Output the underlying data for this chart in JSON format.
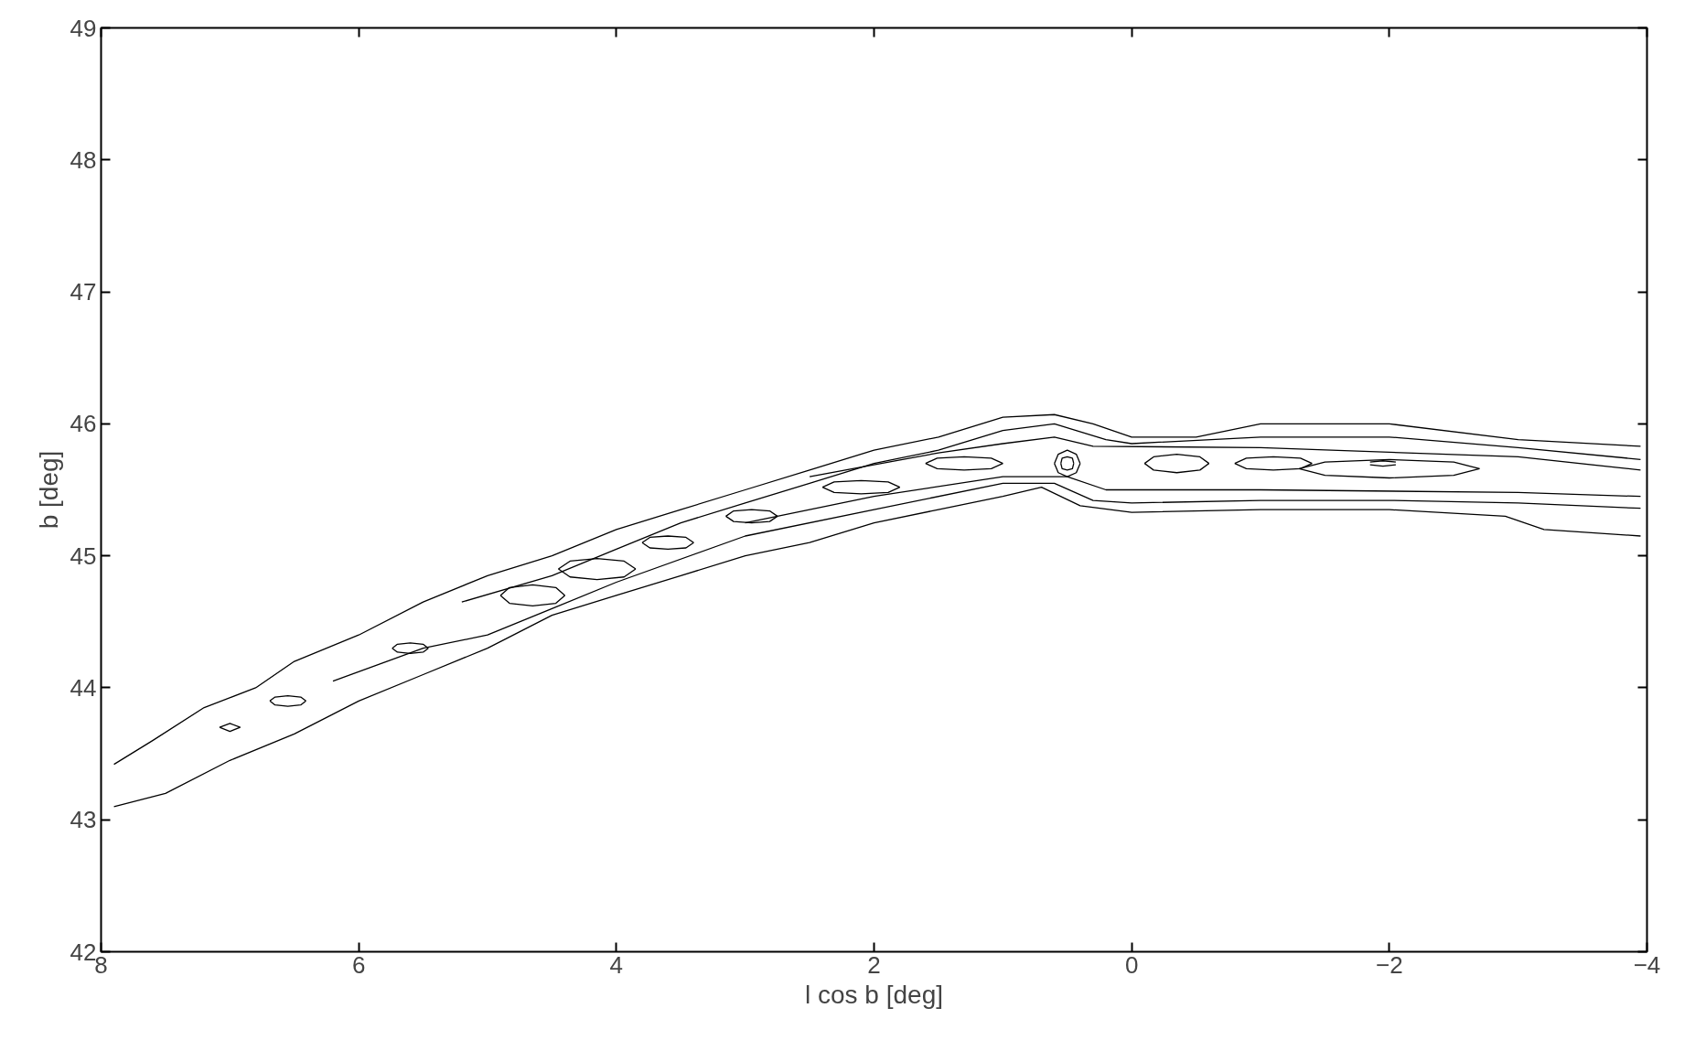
{
  "chart_data": {
    "type": "line",
    "xlabel": "l cos b [deg]",
    "ylabel": "b [deg]",
    "xlim": [
      8,
      -4
    ],
    "ylim": [
      42,
      49
    ],
    "xticks": [
      8,
      6,
      4,
      2,
      0,
      -2,
      -4
    ],
    "yticks": [
      42,
      43,
      44,
      45,
      46,
      47,
      48,
      49
    ],
    "grid": false,
    "series": [
      {
        "color": "#000000",
        "x": [
          7.9,
          7.6,
          7.2,
          6.8,
          6.5,
          6.0,
          5.5,
          5.0,
          4.5,
          4.0,
          3.5,
          3.0,
          2.5,
          2.0,
          1.5,
          1.0,
          0.6,
          0.3,
          0.0,
          -0.5,
          -1.0,
          -2.0,
          -3.0,
          -3.95
        ],
        "values": [
          43.42,
          43.6,
          43.85,
          44.0,
          44.2,
          44.4,
          44.65,
          44.85,
          45.0,
          45.2,
          45.35,
          45.5,
          45.65,
          45.8,
          45.9,
          46.05,
          46.07,
          46.0,
          45.9,
          45.9,
          46.0,
          46.0,
          45.88,
          45.83
        ]
      },
      {
        "color": "#000000",
        "x": [
          7.9,
          7.5,
          7.0,
          6.5,
          6.0,
          5.5,
          5.0,
          4.5,
          4.0,
          3.5,
          3.0,
          2.5,
          2.0,
          1.5,
          1.0,
          0.7,
          0.4,
          0.0,
          -1.0,
          -2.0,
          -2.9,
          -3.2,
          -3.95
        ],
        "values": [
          43.1,
          43.2,
          43.45,
          43.65,
          43.9,
          44.1,
          44.3,
          44.55,
          44.7,
          44.85,
          45.0,
          45.1,
          45.25,
          45.35,
          45.45,
          45.52,
          45.38,
          45.33,
          45.35,
          45.35,
          45.3,
          45.2,
          45.15
        ]
      },
      {
        "color": "#000000",
        "x": [
          5.2,
          4.5,
          4.0,
          3.5,
          3.0,
          2.5,
          2.0,
          1.5,
          1.0,
          0.6,
          0.2,
          0.0,
          -1.0,
          -2.0,
          -3.0,
          -3.95
        ],
        "values": [
          44.65,
          44.85,
          45.05,
          45.25,
          45.4,
          45.55,
          45.7,
          45.8,
          45.95,
          46.0,
          45.88,
          45.85,
          45.9,
          45.9,
          45.82,
          45.73
        ]
      },
      {
        "color": "#000000",
        "x": [
          6.2,
          5.5,
          5.0,
          4.5,
          4.0,
          3.0,
          2.0,
          1.0,
          0.6,
          0.3,
          0.0,
          -1.0,
          -2.0,
          -3.0,
          -3.95
        ],
        "values": [
          44.05,
          44.3,
          44.4,
          44.6,
          44.8,
          45.15,
          45.35,
          45.55,
          45.55,
          45.42,
          45.4,
          45.42,
          45.42,
          45.4,
          45.36
        ]
      },
      {
        "color": "#000000",
        "x": [
          2.5,
          1.5,
          1.0,
          0.6,
          0.3,
          -1.0,
          -3.0,
          -3.95
        ],
        "values": [
          45.6,
          45.78,
          45.85,
          45.9,
          45.83,
          45.82,
          45.75,
          45.65
        ]
      },
      {
        "color": "#000000",
        "x": [
          3.0,
          2.0,
          1.0,
          0.5,
          0.2,
          -1.0,
          -3.0,
          -3.95
        ],
        "values": [
          45.25,
          45.45,
          45.6,
          45.6,
          45.5,
          45.5,
          45.48,
          45.45
        ]
      },
      {
        "color": "#000000",
        "x": [
          7.08,
          7.0,
          6.92
        ],
        "values": [
          43.7,
          43.73,
          43.7
        ]
      },
      {
        "color": "#000000",
        "x": [
          7.08,
          7.0,
          6.92
        ],
        "values": [
          43.7,
          43.67,
          43.7
        ]
      },
      {
        "color": "#000000",
        "x": [
          6.69,
          6.65,
          6.55,
          6.45,
          6.41
        ],
        "values": [
          43.9,
          43.93,
          43.94,
          43.93,
          43.9
        ]
      },
      {
        "color": "#000000",
        "x": [
          6.41,
          6.45,
          6.55,
          6.65,
          6.69
        ],
        "values": [
          43.9,
          43.87,
          43.86,
          43.87,
          43.9
        ]
      },
      {
        "color": "#000000",
        "x": [
          5.74,
          5.7,
          5.6,
          5.5,
          5.46
        ],
        "values": [
          44.3,
          44.33,
          44.34,
          44.33,
          44.3
        ]
      },
      {
        "color": "#000000",
        "x": [
          5.46,
          5.5,
          5.6,
          5.7,
          5.74
        ],
        "values": [
          44.3,
          44.27,
          44.26,
          44.27,
          44.3
        ]
      },
      {
        "color": "#000000",
        "x": [
          4.9,
          4.83,
          4.65,
          4.47,
          4.4
        ],
        "values": [
          44.7,
          44.76,
          44.78,
          44.76,
          44.7
        ]
      },
      {
        "color": "#000000",
        "x": [
          4.4,
          4.47,
          4.65,
          4.83,
          4.9
        ],
        "values": [
          44.7,
          44.64,
          44.62,
          44.64,
          44.7
        ]
      },
      {
        "color": "#000000",
        "x": [
          4.45,
          4.36,
          4.15,
          3.94,
          3.85
        ],
        "values": [
          44.9,
          44.96,
          44.98,
          44.96,
          44.9
        ]
      },
      {
        "color": "#000000",
        "x": [
          3.85,
          3.94,
          4.15,
          4.36,
          4.45
        ],
        "values": [
          44.9,
          44.84,
          44.82,
          44.84,
          44.9
        ]
      },
      {
        "color": "#000000",
        "x": [
          3.8,
          3.74,
          3.6,
          3.46,
          3.4
        ],
        "values": [
          45.1,
          45.14,
          45.15,
          45.14,
          45.1
        ]
      },
      {
        "color": "#000000",
        "x": [
          3.4,
          3.46,
          3.6,
          3.74,
          3.8
        ],
        "values": [
          45.1,
          45.06,
          45.05,
          45.06,
          45.1
        ]
      },
      {
        "color": "#000000",
        "x": [
          3.15,
          3.09,
          2.95,
          2.81,
          2.75
        ],
        "values": [
          45.3,
          45.34,
          45.35,
          45.34,
          45.3
        ]
      },
      {
        "color": "#000000",
        "x": [
          2.75,
          2.81,
          2.95,
          3.09,
          3.15
        ],
        "values": [
          45.3,
          45.26,
          45.25,
          45.26,
          45.3
        ]
      },
      {
        "color": "#000000",
        "x": [
          2.4,
          2.31,
          2.1,
          1.89,
          1.8
        ],
        "values": [
          45.52,
          45.56,
          45.57,
          45.56,
          45.52
        ]
      },
      {
        "color": "#000000",
        "x": [
          1.8,
          1.89,
          2.1,
          2.31,
          2.4
        ],
        "values": [
          45.52,
          45.48,
          45.47,
          45.48,
          45.52
        ]
      },
      {
        "color": "#000000",
        "x": [
          1.6,
          1.51,
          1.3,
          1.09,
          1.0
        ],
        "values": [
          45.7,
          45.74,
          45.75,
          45.74,
          45.7
        ]
      },
      {
        "color": "#000000",
        "x": [
          1.0,
          1.09,
          1.3,
          1.51,
          1.6
        ],
        "values": [
          45.7,
          45.66,
          45.65,
          45.66,
          45.7
        ]
      },
      {
        "color": "#000000",
        "x": [
          0.6,
          0.57,
          0.5,
          0.43,
          0.4
        ],
        "values": [
          45.7,
          45.77,
          45.8,
          45.77,
          45.7
        ]
      },
      {
        "color": "#000000",
        "x": [
          0.4,
          0.43,
          0.5,
          0.57,
          0.6
        ],
        "values": [
          45.7,
          45.63,
          45.6,
          45.63,
          45.7
        ]
      },
      {
        "color": "#000000",
        "x": [
          0.55,
          0.54,
          0.5,
          0.46,
          0.45
        ],
        "values": [
          45.7,
          45.74,
          45.75,
          45.74,
          45.7
        ]
      },
      {
        "color": "#000000",
        "x": [
          0.45,
          0.46,
          0.5,
          0.54,
          0.55
        ],
        "values": [
          45.7,
          45.66,
          45.65,
          45.66,
          45.7
        ]
      },
      {
        "color": "#000000",
        "x": [
          -0.1,
          -0.17,
          -0.35,
          -0.53,
          -0.6
        ],
        "values": [
          45.7,
          45.75,
          45.77,
          45.75,
          45.7
        ]
      },
      {
        "color": "#000000",
        "x": [
          -0.6,
          -0.53,
          -0.35,
          -0.17,
          -0.1
        ],
        "values": [
          45.7,
          45.65,
          45.63,
          45.65,
          45.7
        ]
      },
      {
        "color": "#000000",
        "x": [
          -0.8,
          -0.89,
          -1.1,
          -1.31,
          -1.4
        ],
        "values": [
          45.7,
          45.74,
          45.75,
          45.74,
          45.7
        ]
      },
      {
        "color": "#000000",
        "x": [
          -1.4,
          -1.31,
          -1.1,
          -0.89,
          -0.8
        ],
        "values": [
          45.7,
          45.66,
          45.65,
          45.66,
          45.7
        ]
      },
      {
        "color": "#000000",
        "x": [
          -1.85,
          -1.95,
          -2.05
        ],
        "values": [
          45.71,
          45.72,
          45.71
        ]
      },
      {
        "color": "#000000",
        "x": [
          -1.85,
          -1.95,
          -2.05
        ],
        "values": [
          45.69,
          45.68,
          45.69
        ]
      },
      {
        "color": "#000000",
        "x": [
          -1.3,
          -1.5,
          -2.0,
          -2.5,
          -2.7
        ],
        "values": [
          45.66,
          45.71,
          45.73,
          45.71,
          45.66
        ]
      },
      {
        "color": "#000000",
        "x": [
          -2.7,
          -2.5,
          -2.0,
          -1.5,
          -1.3
        ],
        "values": [
          45.66,
          45.61,
          45.59,
          45.61,
          45.66
        ]
      }
    ]
  }
}
